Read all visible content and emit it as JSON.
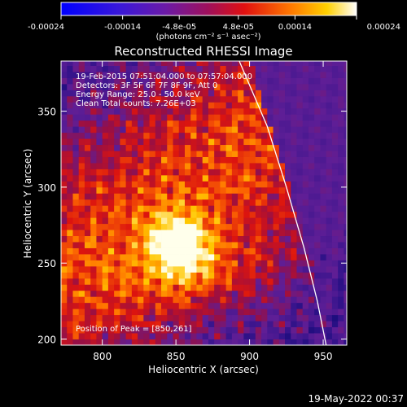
{
  "chart_data": {
    "type": "heatmap",
    "title": "Reconstructed RHESSI Image",
    "xlabel": "Heliocentric X (arcsec)",
    "ylabel": "Heliocentric Y (arcsec)",
    "xlim": [
      772,
      966
    ],
    "ylim": [
      196,
      383
    ],
    "xticks": [
      800,
      850,
      900,
      950
    ],
    "yticks": [
      200,
      250,
      300,
      350
    ],
    "colorbar": {
      "colormap": "rainbow-like (blue-purple-red-orange-yellow-white)",
      "range": [
        -0.00024,
        0.00024
      ],
      "tick_labels": [
        "-0.00024",
        "-0.00014",
        "-4.8e-05",
        "4.8e-05",
        "0.00014",
        "0.00024"
      ],
      "tick_values": [
        -0.00024,
        -0.00014,
        -4.8e-05,
        4.8e-05,
        0.00014,
        0.00024
      ],
      "units_text": "(photons cm⁻² s⁻¹ asec⁻²)"
    },
    "annotations": {
      "time_range": "19-Feb-2015 07:51:04.000 to 07:57:04.000",
      "detectors": "Detectors: 3F 5F 6F 7F 8F 9F, Att 0",
      "energy": "Energy Range: 25.0 - 50.0 keV",
      "clean": "Clean     Total counts: 7.26E+03",
      "peak": "Position of Peak = [850,261]"
    },
    "peak": {
      "x": 850,
      "y": 261
    },
    "limb_curve": [
      [
        893,
        383
      ],
      [
        912,
        340
      ],
      [
        925,
        300
      ],
      [
        937,
        260
      ],
      [
        946,
        225
      ],
      [
        952,
        196
      ]
    ]
  },
  "footer": {
    "timestamp": "19-May-2022 00:37"
  }
}
